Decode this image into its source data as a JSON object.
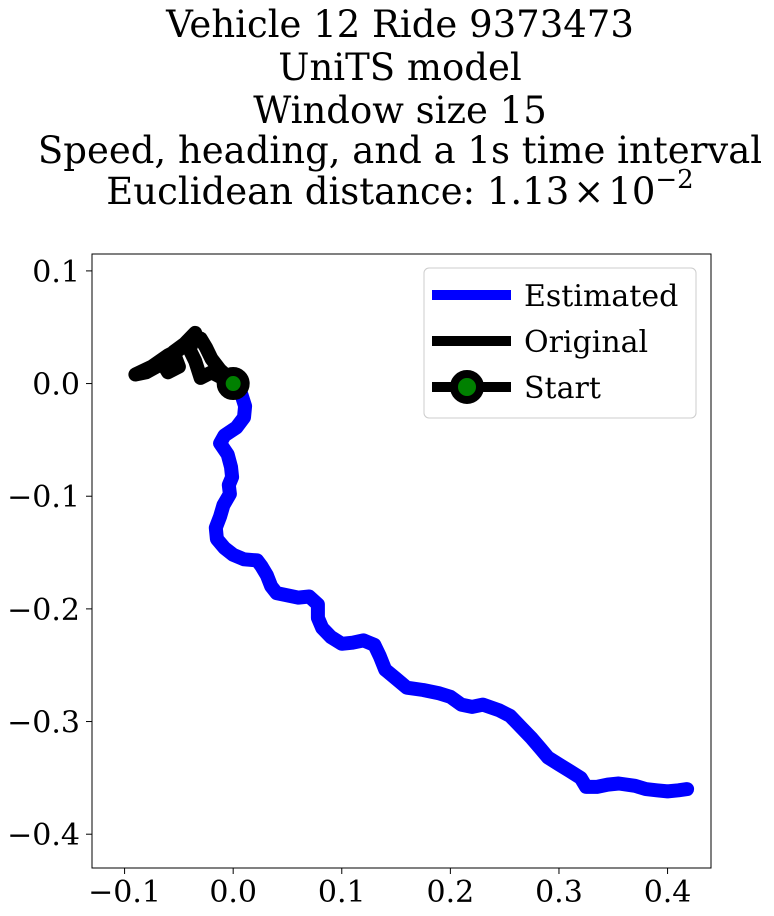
{
  "chart_data": {
    "type": "line",
    "title_lines": [
      "Vehicle 12 Ride 9373473",
      "UniTS model",
      "Window size 15",
      "Speed, heading, and a 1s time interval"
    ],
    "title_metric": {
      "prefix": "Euclidean distance: ",
      "mantissa": "1.13",
      "times": "×",
      "base": "10",
      "exponent": "−2"
    },
    "xlim": [
      -0.13,
      0.44
    ],
    "ylim": [
      -0.43,
      0.115
    ],
    "xticks": [
      {
        "value": -0.1,
        "label": "−0.1"
      },
      {
        "value": 0.0,
        "label": "0.0"
      },
      {
        "value": 0.1,
        "label": "0.1"
      },
      {
        "value": 0.2,
        "label": "0.2"
      },
      {
        "value": 0.3,
        "label": "0.3"
      },
      {
        "value": 0.4,
        "label": "0.4"
      }
    ],
    "yticks": [
      {
        "value": 0.1,
        "label": "0.1"
      },
      {
        "value": 0.0,
        "label": "0.0"
      },
      {
        "value": -0.1,
        "label": "−0.1"
      },
      {
        "value": -0.2,
        "label": "−0.2"
      },
      {
        "value": -0.3,
        "label": "−0.3"
      },
      {
        "value": -0.4,
        "label": "−0.4"
      }
    ],
    "legend_position": "top-right",
    "series": [
      {
        "name": "Estimated",
        "color": "#0000ff",
        "points": [
          [
            0.0,
            0.0
          ],
          [
            0.007,
            -0.008
          ],
          [
            0.011,
            -0.02
          ],
          [
            0.01,
            -0.03
          ],
          [
            0.003,
            -0.039
          ],
          [
            -0.008,
            -0.046
          ],
          [
            -0.012,
            -0.053
          ],
          [
            -0.005,
            -0.063
          ],
          [
            -0.002,
            -0.074
          ],
          [
            -0.001,
            -0.083
          ],
          [
            -0.004,
            -0.09
          ],
          [
            -0.003,
            -0.098
          ],
          [
            -0.009,
            -0.108
          ],
          [
            -0.012,
            -0.118
          ],
          [
            -0.016,
            -0.128
          ],
          [
            -0.015,
            -0.138
          ],
          [
            -0.008,
            -0.146
          ],
          [
            0.0,
            -0.152
          ],
          [
            0.01,
            -0.156
          ],
          [
            0.022,
            -0.157
          ],
          [
            0.026,
            -0.162
          ],
          [
            0.031,
            -0.17
          ],
          [
            0.035,
            -0.18
          ],
          [
            0.04,
            -0.186
          ],
          [
            0.05,
            -0.188
          ],
          [
            0.06,
            -0.19
          ],
          [
            0.07,
            -0.189
          ],
          [
            0.078,
            -0.196
          ],
          [
            0.078,
            -0.208
          ],
          [
            0.082,
            -0.217
          ],
          [
            0.09,
            -0.225
          ],
          [
            0.1,
            -0.231
          ],
          [
            0.11,
            -0.23
          ],
          [
            0.12,
            -0.228
          ],
          [
            0.13,
            -0.232
          ],
          [
            0.135,
            -0.242
          ],
          [
            0.14,
            -0.254
          ],
          [
            0.15,
            -0.262
          ],
          [
            0.16,
            -0.27
          ],
          [
            0.175,
            -0.272
          ],
          [
            0.19,
            -0.275
          ],
          [
            0.2,
            -0.278
          ],
          [
            0.21,
            -0.285
          ],
          [
            0.22,
            -0.287
          ],
          [
            0.23,
            -0.285
          ],
          [
            0.245,
            -0.29
          ],
          [
            0.255,
            -0.295
          ],
          [
            0.265,
            -0.305
          ],
          [
            0.275,
            -0.315
          ],
          [
            0.283,
            -0.324
          ],
          [
            0.29,
            -0.332
          ],
          [
            0.3,
            -0.338
          ],
          [
            0.31,
            -0.344
          ],
          [
            0.32,
            -0.35
          ],
          [
            0.325,
            -0.358
          ],
          [
            0.335,
            -0.358
          ],
          [
            0.345,
            -0.356
          ],
          [
            0.355,
            -0.355
          ],
          [
            0.37,
            -0.357
          ],
          [
            0.38,
            -0.36
          ],
          [
            0.39,
            -0.361
          ],
          [
            0.4,
            -0.362
          ],
          [
            0.41,
            -0.361
          ],
          [
            0.418,
            -0.36
          ]
        ]
      },
      {
        "name": "Original",
        "color": "#000000",
        "points": [
          [
            0.0,
            0.0
          ],
          [
            -0.01,
            0.005
          ],
          [
            -0.02,
            0.01
          ],
          [
            -0.03,
            0.005
          ],
          [
            -0.035,
            0.02
          ],
          [
            -0.04,
            0.03
          ],
          [
            -0.035,
            0.045
          ],
          [
            -0.045,
            0.035
          ],
          [
            -0.055,
            0.028
          ],
          [
            -0.05,
            0.015
          ],
          [
            -0.06,
            0.01
          ],
          [
            -0.065,
            0.018
          ],
          [
            -0.08,
            0.01
          ],
          [
            -0.09,
            0.008
          ],
          [
            -0.075,
            0.015
          ],
          [
            -0.06,
            0.025
          ],
          [
            -0.05,
            0.03
          ],
          [
            -0.04,
            0.038
          ],
          [
            -0.03,
            0.04
          ],
          [
            -0.025,
            0.032
          ],
          [
            -0.02,
            0.022
          ],
          [
            -0.012,
            0.012
          ],
          [
            -0.005,
            0.006
          ],
          [
            0.0,
            0.0
          ]
        ]
      }
    ],
    "start_point": {
      "name": "Start",
      "x": 0.0,
      "y": 0.0,
      "fill": "#008000",
      "edge": "#000000"
    }
  }
}
